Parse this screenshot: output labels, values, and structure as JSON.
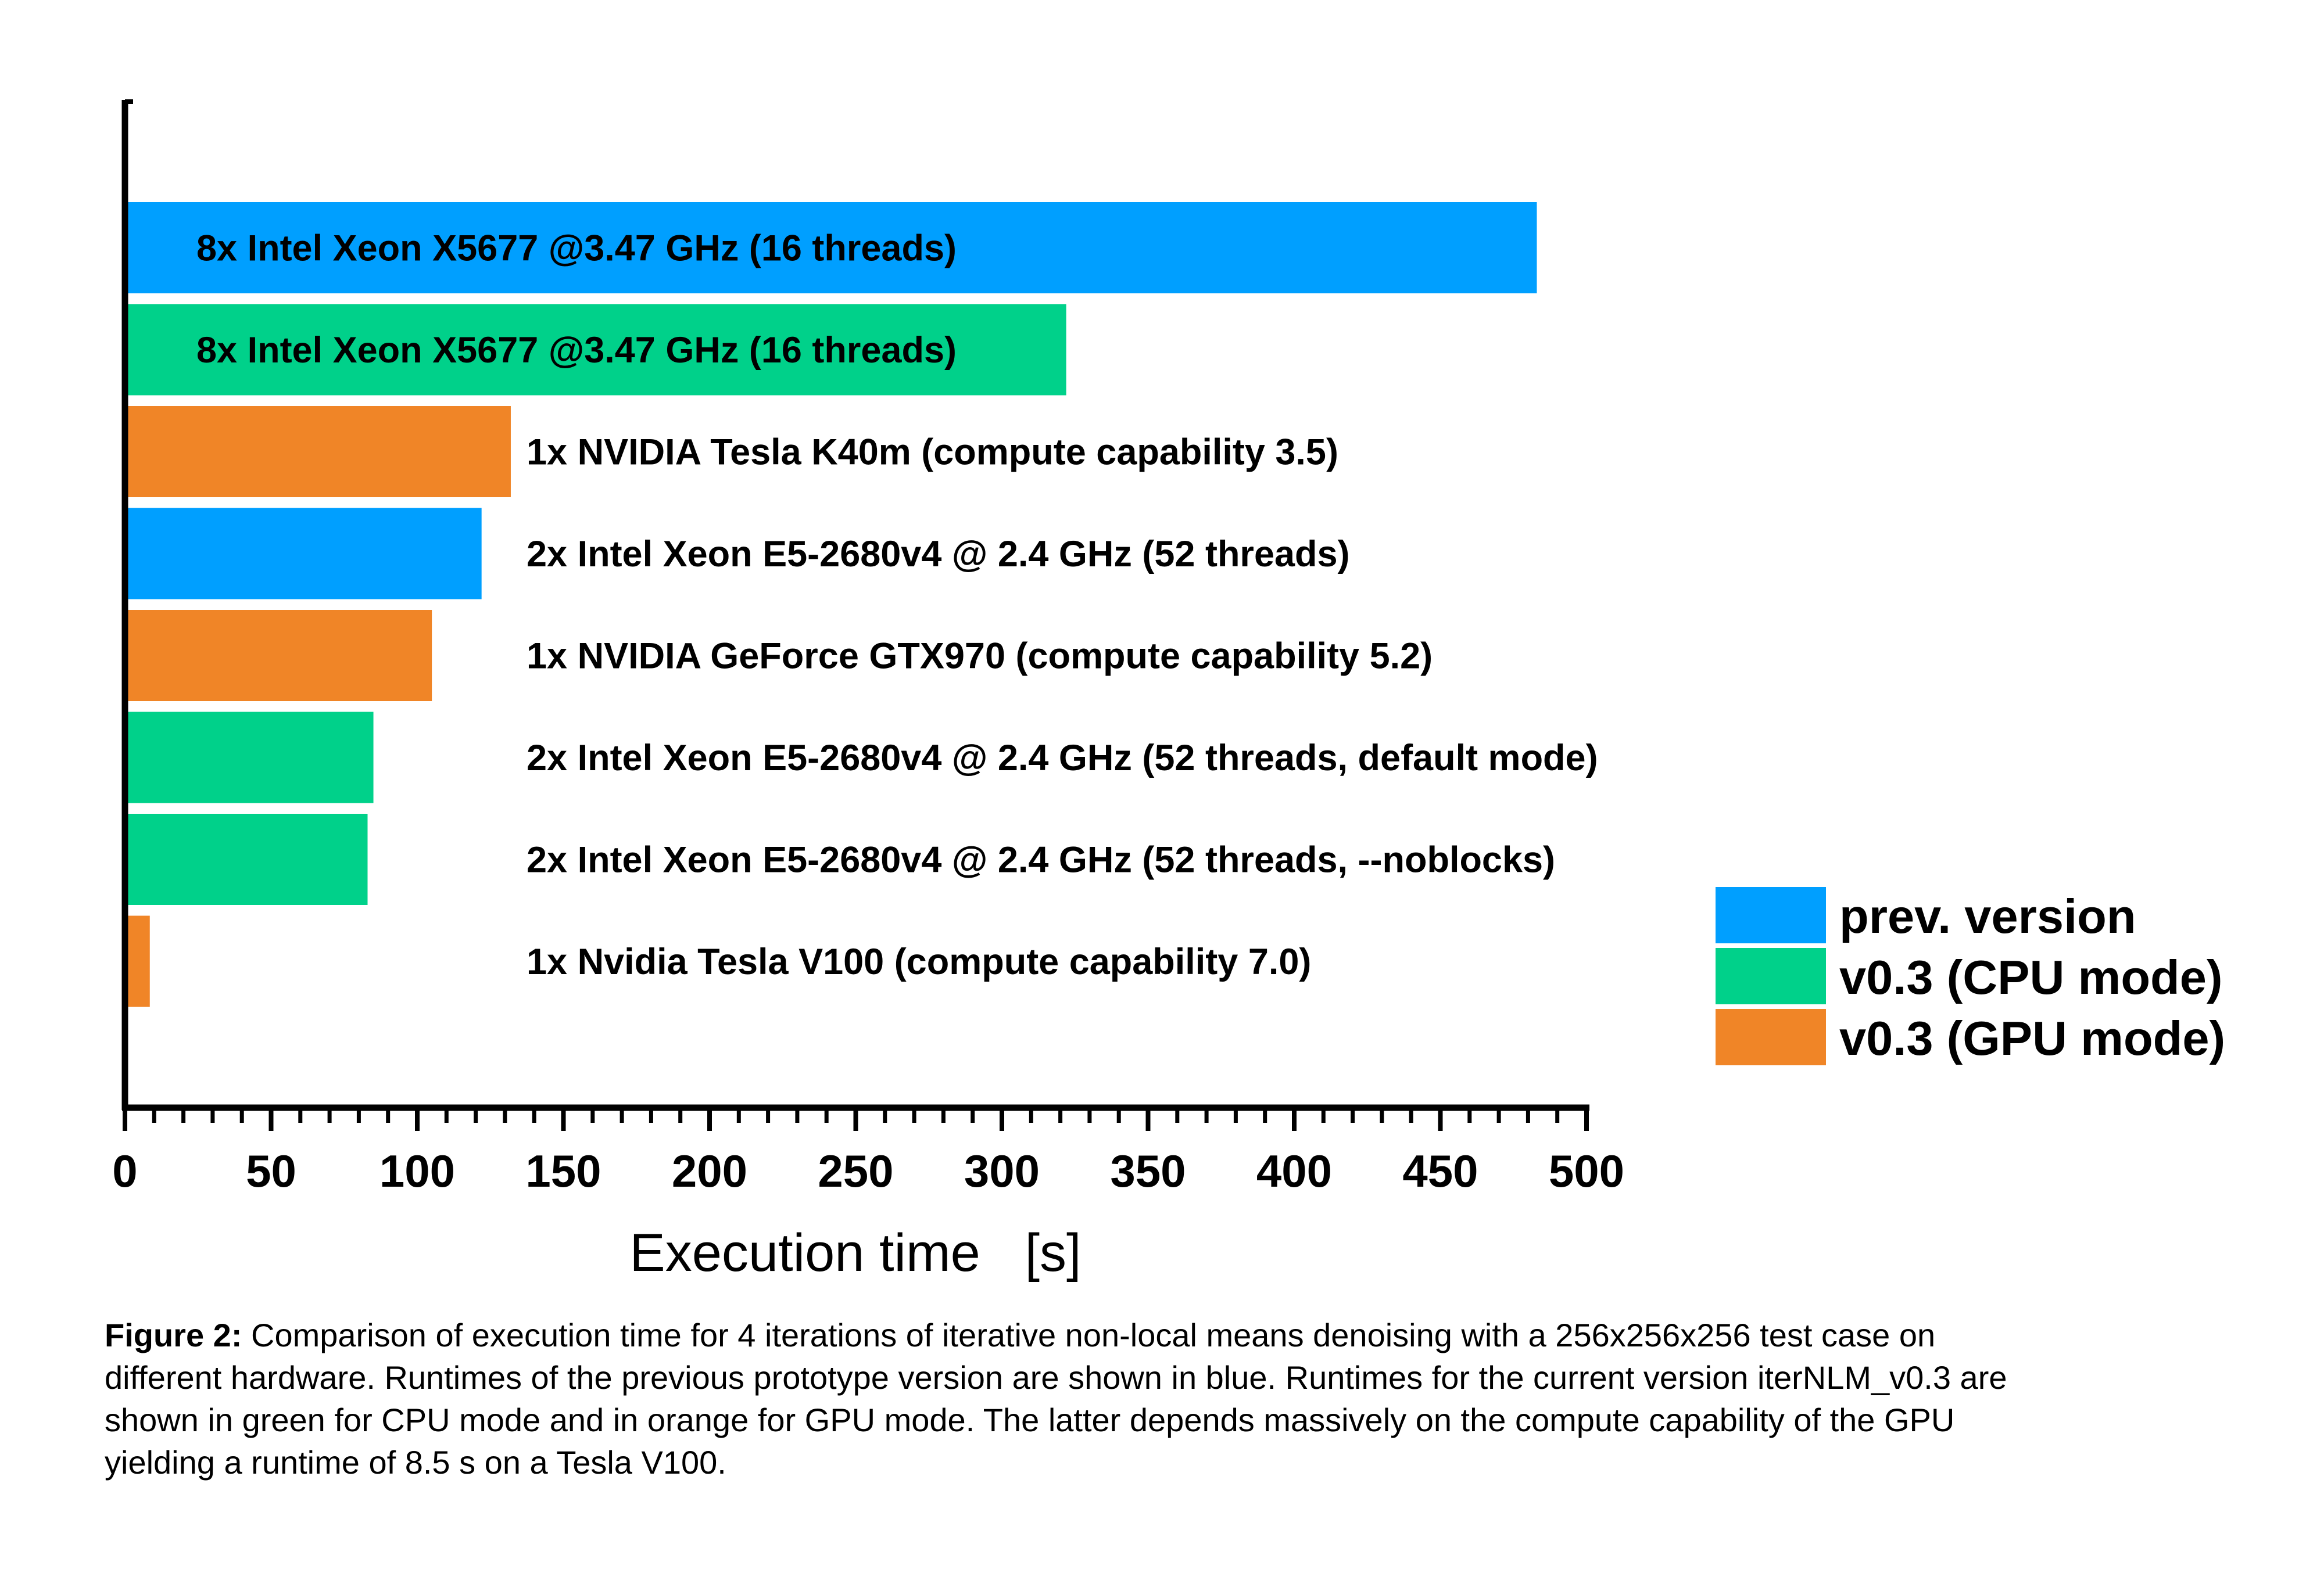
{
  "chart_data": {
    "type": "bar",
    "orientation": "horizontal",
    "xlabel": "Execution time   [s]",
    "xlim": [
      0,
      500
    ],
    "xticks": [
      "0",
      "50",
      "100",
      "150",
      "200",
      "250",
      "300",
      "350",
      "400",
      "450",
      "500"
    ],
    "grid": false,
    "legend_position": "right",
    "legend": [
      {
        "name": "prev. version",
        "color": "#009FFF"
      },
      {
        "name": "v0.3 (CPU mode)",
        "color": "#00D18A"
      },
      {
        "name": "v0.3 (GPU mode)",
        "color": "#F08527"
      }
    ],
    "bars": [
      {
        "label": "8x Intel Xeon X5677 @3.47 GHz (16 threads)",
        "value": 483,
        "series": "prev. version",
        "label_inside": true
      },
      {
        "label": "8x Intel Xeon X5677 @3.47 GHz (16 threads)",
        "value": 322,
        "series": "v0.3 (CPU mode)",
        "label_inside": true
      },
      {
        "label": "1x NVIDIA Tesla K40m (compute capability 3.5)",
        "value": 132,
        "series": "v0.3 (GPU mode)",
        "label_inside": false
      },
      {
        "label": "2x Intel Xeon E5-2680v4 @ 2.4 GHz (52 threads)",
        "value": 122,
        "series": "prev. version",
        "label_inside": false
      },
      {
        "label": "1x NVIDIA GeForce GTX970 (compute capability 5.2)",
        "value": 105,
        "series": "v0.3 (GPU mode)",
        "label_inside": false
      },
      {
        "label": "2x Intel Xeon E5-2680v4 @ 2.4 GHz (52 threads, default mode)",
        "value": 85,
        "series": "v0.3 (CPU mode)",
        "label_inside": false
      },
      {
        "label": "2x Intel Xeon E5-2680v4 @ 2.4 GHz (52 threads, --noblocks)",
        "value": 83,
        "series": "v0.3 (CPU mode)",
        "label_inside": false
      },
      {
        "label": "1x Nvidia Tesla V100 (compute capability 7.0)",
        "value": 8.5,
        "series": "v0.3 (GPU mode)",
        "label_inside": false
      }
    ]
  },
  "caption": {
    "prefix": "Figure 2:",
    "text": " Comparison of execution time for 4 iterations of iterative non-local means denoising with a 256x256x256 test case on different hardware. Runtimes of the previous prototype version are shown in blue. Runtimes for the current version iterNLM_v0.3 are shown in green for CPU mode and in orange for GPU mode. The latter depends massively on the compute capability of the GPU yielding a runtime of 8.5 s on a Tesla V100."
  }
}
